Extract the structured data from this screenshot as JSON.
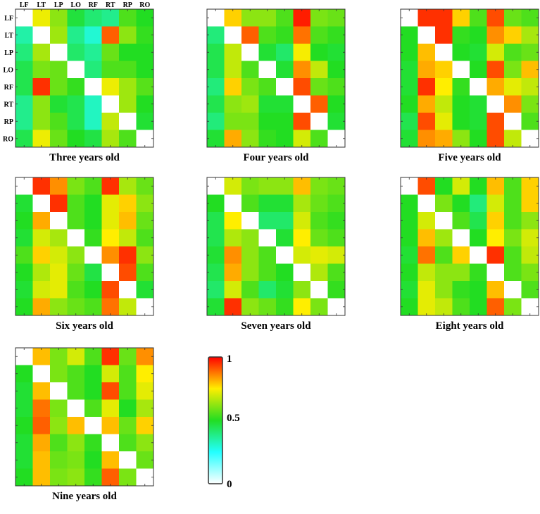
{
  "regions": [
    "LF",
    "LT",
    "LP",
    "LO",
    "RF",
    "RT",
    "RP",
    "RO"
  ],
  "colorbar": {
    "max_label": "1",
    "mid_label": "0.5",
    "min_label": "0",
    "colormap": "jet-like: 0=white, 0.25=cyan, 0.5=green, 0.75=yellow/orange, 1=red",
    "range": [
      0,
      1
    ]
  },
  "chart_data": [
    {
      "type": "heatmap",
      "title": "Three years old",
      "x": [
        "LF",
        "LT",
        "LP",
        "LO",
        "RF",
        "RT",
        "RP",
        "RO"
      ],
      "y": [
        "LF",
        "LT",
        "LP",
        "LO",
        "RF",
        "RT",
        "RP",
        "RO"
      ],
      "values": [
        [
          0.0,
          0.73,
          0.62,
          0.47,
          0.41,
          0.38,
          0.55,
          0.5
        ],
        [
          0.35,
          0.0,
          0.64,
          0.38,
          0.3,
          0.9,
          0.62,
          0.52
        ],
        [
          0.4,
          0.65,
          0.0,
          0.42,
          0.37,
          0.58,
          0.5,
          0.5
        ],
        [
          0.45,
          0.6,
          0.58,
          0.0,
          0.4,
          0.55,
          0.55,
          0.5
        ],
        [
          0.45,
          0.95,
          0.58,
          0.52,
          0.0,
          0.73,
          0.64,
          0.56
        ],
        [
          0.38,
          0.62,
          0.48,
          0.45,
          0.32,
          0.0,
          0.64,
          0.5
        ],
        [
          0.38,
          0.62,
          0.55,
          0.45,
          0.32,
          0.68,
          0.0,
          0.48
        ],
        [
          0.45,
          0.73,
          0.58,
          0.5,
          0.46,
          0.65,
          0.55,
          0.0
        ]
      ]
    },
    {
      "type": "heatmap",
      "title": "Four years old",
      "x": [
        "LF",
        "LT",
        "LP",
        "LO",
        "RF",
        "RT",
        "RP",
        "RO"
      ],
      "y": [
        "LF",
        "LT",
        "LP",
        "LO",
        "RF",
        "RT",
        "RP",
        "RO"
      ],
      "values": [
        [
          0.0,
          0.78,
          0.62,
          0.62,
          0.55,
          0.97,
          0.6,
          0.58
        ],
        [
          0.4,
          0.0,
          0.9,
          0.55,
          0.52,
          0.88,
          0.55,
          0.52
        ],
        [
          0.45,
          0.68,
          0.0,
          0.48,
          0.42,
          0.74,
          0.5,
          0.48
        ],
        [
          0.45,
          0.68,
          0.55,
          0.0,
          0.48,
          0.85,
          0.68,
          0.5
        ],
        [
          0.4,
          0.78,
          0.6,
          0.55,
          0.0,
          0.92,
          0.58,
          0.55
        ],
        [
          0.45,
          0.62,
          0.64,
          0.48,
          0.48,
          0.0,
          0.9,
          0.5
        ],
        [
          0.4,
          0.6,
          0.6,
          0.5,
          0.5,
          0.92,
          0.0,
          0.48
        ],
        [
          0.48,
          0.82,
          0.62,
          0.52,
          0.5,
          0.7,
          0.55,
          0.0
        ]
      ]
    },
    {
      "type": "heatmap",
      "title": "Five years old",
      "x": [
        "LF",
        "LT",
        "LP",
        "LO",
        "RF",
        "RT",
        "RP",
        "RO"
      ],
      "y": [
        "LF",
        "LT",
        "LP",
        "LO",
        "RF",
        "RT",
        "RP",
        "RO"
      ],
      "values": [
        [
          0.0,
          0.95,
          0.95,
          0.78,
          0.55,
          0.92,
          0.58,
          0.55
        ],
        [
          0.5,
          0.0,
          0.95,
          0.52,
          0.5,
          0.85,
          0.78,
          0.65
        ],
        [
          0.5,
          0.8,
          0.0,
          0.5,
          0.48,
          0.7,
          0.55,
          0.58
        ],
        [
          0.48,
          0.82,
          0.78,
          0.0,
          0.5,
          0.92,
          0.6,
          0.8
        ],
        [
          0.48,
          0.95,
          0.75,
          0.52,
          0.0,
          0.82,
          0.72,
          0.68
        ],
        [
          0.5,
          0.82,
          0.68,
          0.5,
          0.48,
          0.0,
          0.85,
          0.6
        ],
        [
          0.45,
          0.92,
          0.72,
          0.5,
          0.48,
          0.92,
          0.0,
          0.55
        ],
        [
          0.48,
          0.85,
          0.82,
          0.62,
          0.5,
          0.92,
          0.68,
          0.0
        ]
      ]
    },
    {
      "type": "heatmap",
      "title": "Six years old",
      "x": [
        "LF",
        "LT",
        "LP",
        "LO",
        "RF",
        "RT",
        "RP",
        "RO"
      ],
      "y": [
        "LF",
        "LT",
        "LP",
        "LO",
        "RF",
        "RT",
        "RP",
        "RO"
      ],
      "values": [
        [
          0.0,
          0.95,
          0.85,
          0.6,
          0.55,
          0.95,
          0.65,
          0.58
        ],
        [
          0.48,
          0.0,
          0.95,
          0.55,
          0.5,
          0.72,
          0.78,
          0.62
        ],
        [
          0.5,
          0.82,
          0.0,
          0.55,
          0.5,
          0.72,
          0.8,
          0.58
        ],
        [
          0.48,
          0.7,
          0.65,
          0.0,
          0.52,
          0.75,
          0.68,
          0.55
        ],
        [
          0.55,
          0.78,
          0.7,
          0.62,
          0.0,
          0.85,
          0.95,
          0.62
        ],
        [
          0.5,
          0.66,
          0.72,
          0.58,
          0.46,
          0.0,
          0.92,
          0.55
        ],
        [
          0.48,
          0.7,
          0.72,
          0.55,
          0.5,
          0.92,
          0.0,
          0.48
        ],
        [
          0.5,
          0.82,
          0.62,
          0.58,
          0.55,
          0.88,
          0.68,
          0.0
        ]
      ]
    },
    {
      "type": "heatmap",
      "title": "Seven years old",
      "x": [
        "LF",
        "LT",
        "LP",
        "LO",
        "RF",
        "RT",
        "RP",
        "RO"
      ],
      "y": [
        "LF",
        "LT",
        "LP",
        "LO",
        "RF",
        "RT",
        "RP",
        "RO"
      ],
      "values": [
        [
          0.0,
          0.7,
          0.6,
          0.62,
          0.62,
          0.8,
          0.6,
          0.58
        ],
        [
          0.5,
          0.0,
          0.55,
          0.48,
          0.48,
          0.65,
          0.58,
          0.55
        ],
        [
          0.45,
          0.75,
          0.0,
          0.42,
          0.42,
          0.7,
          0.55,
          0.52
        ],
        [
          0.45,
          0.66,
          0.62,
          0.0,
          0.48,
          0.75,
          0.58,
          0.55
        ],
        [
          0.48,
          0.85,
          0.62,
          0.55,
          0.0,
          0.7,
          0.72,
          0.7
        ],
        [
          0.45,
          0.82,
          0.62,
          0.55,
          0.5,
          0.0,
          0.66,
          0.55
        ],
        [
          0.42,
          0.7,
          0.55,
          0.42,
          0.48,
          0.62,
          0.0,
          0.52
        ],
        [
          0.48,
          0.95,
          0.62,
          0.58,
          0.52,
          0.75,
          0.6,
          0.0
        ]
      ]
    },
    {
      "type": "heatmap",
      "title": "Eight years old",
      "x": [
        "LF",
        "LT",
        "LP",
        "LO",
        "RF",
        "RT",
        "RP",
        "RO"
      ],
      "y": [
        "LF",
        "LT",
        "LP",
        "LO",
        "RF",
        "RT",
        "RP",
        "RO"
      ],
      "values": [
        [
          0.0,
          0.92,
          0.5,
          0.7,
          0.5,
          0.8,
          0.55,
          0.78
        ],
        [
          0.5,
          0.0,
          0.6,
          0.5,
          0.4,
          0.7,
          0.55,
          0.78
        ],
        [
          0.5,
          0.7,
          0.0,
          0.55,
          0.45,
          0.78,
          0.55,
          0.62
        ],
        [
          0.5,
          0.8,
          0.64,
          0.0,
          0.5,
          0.75,
          0.6,
          0.7
        ],
        [
          0.48,
          0.88,
          0.55,
          0.78,
          0.0,
          0.95,
          0.55,
          0.68
        ],
        [
          0.5,
          0.68,
          0.62,
          0.62,
          0.52,
          0.0,
          0.55,
          0.6
        ],
        [
          0.48,
          0.72,
          0.62,
          0.52,
          0.5,
          0.8,
          0.0,
          0.55
        ],
        [
          0.5,
          0.72,
          0.68,
          0.55,
          0.5,
          0.9,
          0.6,
          0.0
        ]
      ]
    },
    {
      "type": "heatmap",
      "title": "Nine years old",
      "x": [
        "LF",
        "LT",
        "LP",
        "LO",
        "RF",
        "RT",
        "RP",
        "RO"
      ],
      "y": [
        "LF",
        "LT",
        "LP",
        "LO",
        "RF",
        "RT",
        "RP",
        "RO"
      ],
      "values": [
        [
          0.0,
          0.8,
          0.6,
          0.7,
          0.55,
          0.95,
          0.58,
          0.85
        ],
        [
          0.5,
          0.0,
          0.6,
          0.55,
          0.5,
          0.7,
          0.55,
          0.75
        ],
        [
          0.48,
          0.8,
          0.0,
          0.55,
          0.5,
          0.92,
          0.55,
          0.72
        ],
        [
          0.48,
          0.88,
          0.6,
          0.0,
          0.55,
          0.72,
          0.5,
          0.65
        ],
        [
          0.5,
          0.9,
          0.62,
          0.8,
          0.0,
          0.8,
          0.58,
          0.78
        ],
        [
          0.48,
          0.82,
          0.55,
          0.62,
          0.52,
          0.0,
          0.55,
          0.62
        ],
        [
          0.48,
          0.8,
          0.58,
          0.6,
          0.5,
          0.8,
          0.0,
          0.58
        ],
        [
          0.5,
          0.8,
          0.6,
          0.62,
          0.52,
          0.9,
          0.6,
          0.0
        ]
      ]
    }
  ]
}
